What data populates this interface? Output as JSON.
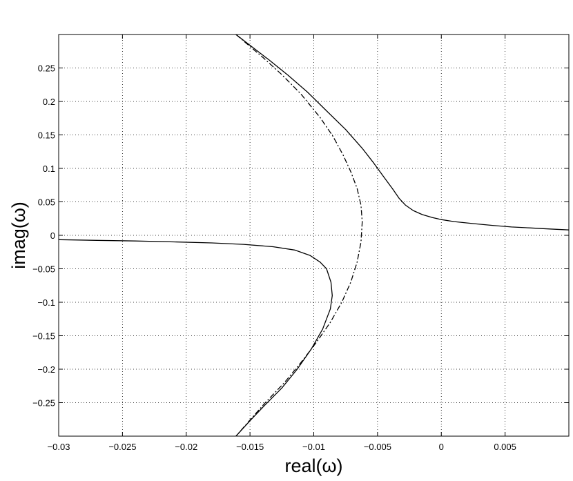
{
  "chart_data": {
    "type": "line",
    "title": "",
    "xlabel": "real(ω)",
    "ylabel": "imag(ω)",
    "xlim": [
      -0.03,
      0.01
    ],
    "ylim": [
      -0.3,
      0.3
    ],
    "x_ticks": [
      -0.03,
      -0.025,
      -0.02,
      -0.015,
      -0.01,
      -0.005,
      0,
      0.005
    ],
    "x_tick_labels": [
      "−0.03",
      "−0.025",
      "−0.02",
      "−0.015",
      "−0.01",
      "−0.005",
      "0",
      "0.005"
    ],
    "y_ticks": [
      0.25,
      0.2,
      0.15,
      0.1,
      0.05,
      0,
      -0.05,
      -0.1,
      -0.15,
      -0.2,
      -0.25
    ],
    "y_tick_labels": [
      "0.25",
      "0.2",
      "0.15",
      "0.1",
      "0.05",
      "0",
      "−0.05",
      "−0.1",
      "−0.15",
      "−0.2",
      "−0.25"
    ],
    "grid": true,
    "legend": null,
    "series": [
      {
        "style": "solid",
        "color": "#000000",
        "x": [
          -0.0161,
          -0.0135,
          -0.012,
          -0.0105,
          -0.009,
          -0.0075,
          -0.0062,
          -0.0053,
          -0.0045,
          -0.0038,
          -0.0033,
          -0.0028,
          -0.0022,
          -0.0015,
          -0.0007,
          0,
          0.001,
          0.0025,
          0.004,
          0.0055,
          0.007,
          0.0085,
          0.01
        ],
        "y": [
          0.3,
          0.262,
          0.239,
          0.214,
          0.186,
          0.158,
          0.13,
          0.108,
          0.087,
          0.069,
          0.055,
          0.045,
          0.037,
          0.031,
          0.0265,
          0.0235,
          0.0205,
          0.0175,
          0.0148,
          0.0125,
          0.011,
          0.0095,
          0.008
        ]
      },
      {
        "style": "solid",
        "color": "#000000",
        "x": [
          -0.03,
          -0.027,
          -0.024,
          -0.021,
          -0.018,
          -0.0155,
          -0.0132,
          -0.0115,
          -0.0103,
          -0.0095,
          -0.009,
          -0.00865,
          -0.00855,
          -0.0087,
          -0.0093,
          -0.0102,
          -0.0113,
          -0.0125,
          -0.0138,
          -0.015,
          -0.0161
        ],
        "y": [
          -0.0065,
          -0.0075,
          -0.0085,
          -0.0098,
          -0.0113,
          -0.0135,
          -0.017,
          -0.022,
          -0.03,
          -0.04,
          -0.05,
          -0.07,
          -0.09,
          -0.11,
          -0.14,
          -0.17,
          -0.2,
          -0.228,
          -0.253,
          -0.277,
          -0.3
        ]
      },
      {
        "style": "dashdot",
        "color": "#000000",
        "x": [
          -0.0161,
          -0.014,
          -0.0125,
          -0.011,
          -0.0095,
          -0.0085,
          -0.0077,
          -0.0071,
          -0.0066,
          -0.0063,
          -0.0062,
          -0.0063,
          -0.0066,
          -0.0071,
          -0.0078,
          -0.0087,
          -0.0098,
          -0.011,
          -0.0123,
          -0.0138,
          -0.0151,
          -0.0161
        ],
        "y": [
          0.3,
          0.266,
          0.24,
          0.211,
          0.176,
          0.148,
          0.12,
          0.095,
          0.07,
          0.045,
          0.02,
          -0.01,
          -0.04,
          -0.07,
          -0.1,
          -0.13,
          -0.16,
          -0.19,
          -0.22,
          -0.25,
          -0.278,
          -0.3
        ]
      }
    ]
  }
}
